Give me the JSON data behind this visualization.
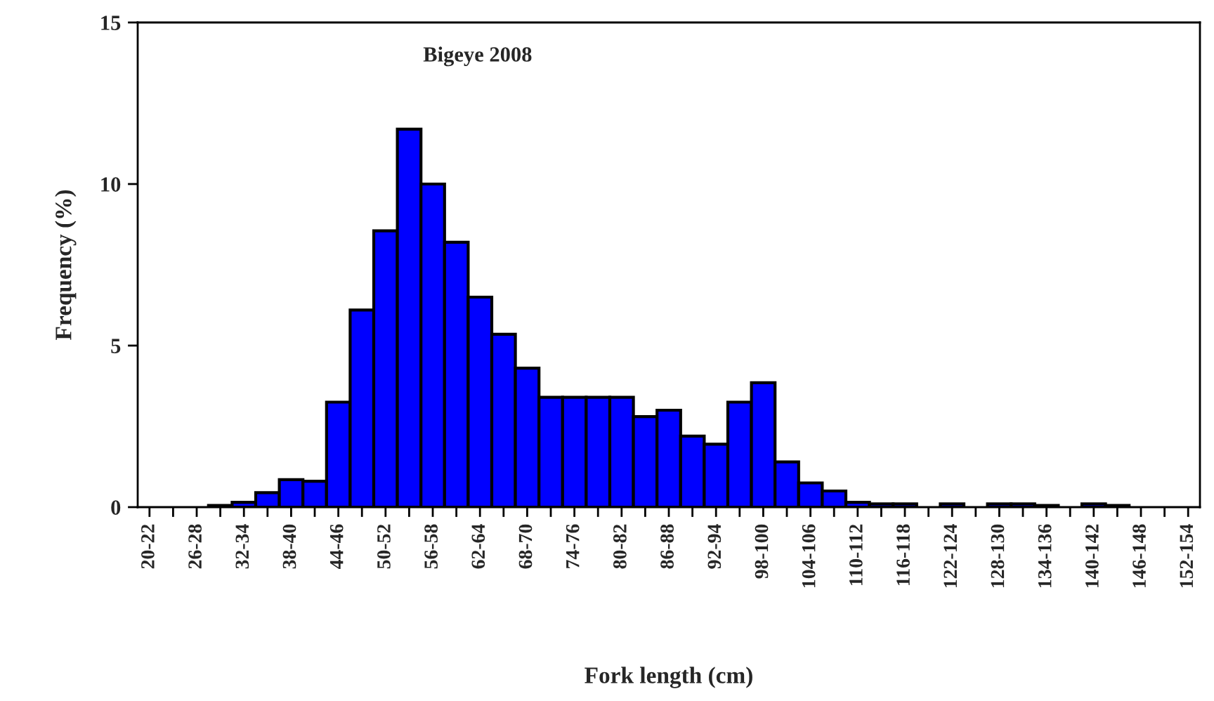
{
  "chart_data": {
    "type": "bar",
    "title": "Bigeye 2008",
    "xlabel": "Fork length (cm)",
    "ylabel": "Frequency (%)",
    "categories": [
      "20-22",
      null,
      "26-28",
      null,
      "32-34",
      null,
      "38-40",
      null,
      "44-46",
      null,
      "50-52",
      null,
      "56-58",
      null,
      "62-64",
      null,
      "68-70",
      null,
      "74-76",
      null,
      "80-82",
      null,
      "86-88",
      null,
      "92-94",
      null,
      "98-100",
      null,
      "104-106",
      null,
      "110-112",
      null,
      "116-118",
      null,
      "122-124",
      null,
      "128-130",
      null,
      "134-136",
      null,
      "140-142",
      null,
      "146-148",
      null,
      "152-154"
    ],
    "values": [
      0,
      0,
      0,
      0.05,
      0.15,
      0.45,
      0.85,
      0.8,
      3.25,
      6.1,
      8.55,
      11.7,
      10.0,
      8.2,
      6.5,
      5.35,
      4.3,
      3.4,
      3.4,
      3.4,
      3.4,
      2.8,
      3.0,
      2.2,
      1.95,
      3.25,
      3.85,
      1.4,
      0.75,
      0.5,
      0.15,
      0.1,
      0.1,
      0,
      0.1,
      0,
      0.1,
      0.1,
      0.05,
      0,
      0.1,
      0.05,
      0,
      0,
      0
    ],
    "color": "#0000ff",
    "ylim": [
      0,
      15
    ],
    "yticks": [
      0,
      5,
      10,
      15
    ],
    "grid": false,
    "legend": false
  }
}
